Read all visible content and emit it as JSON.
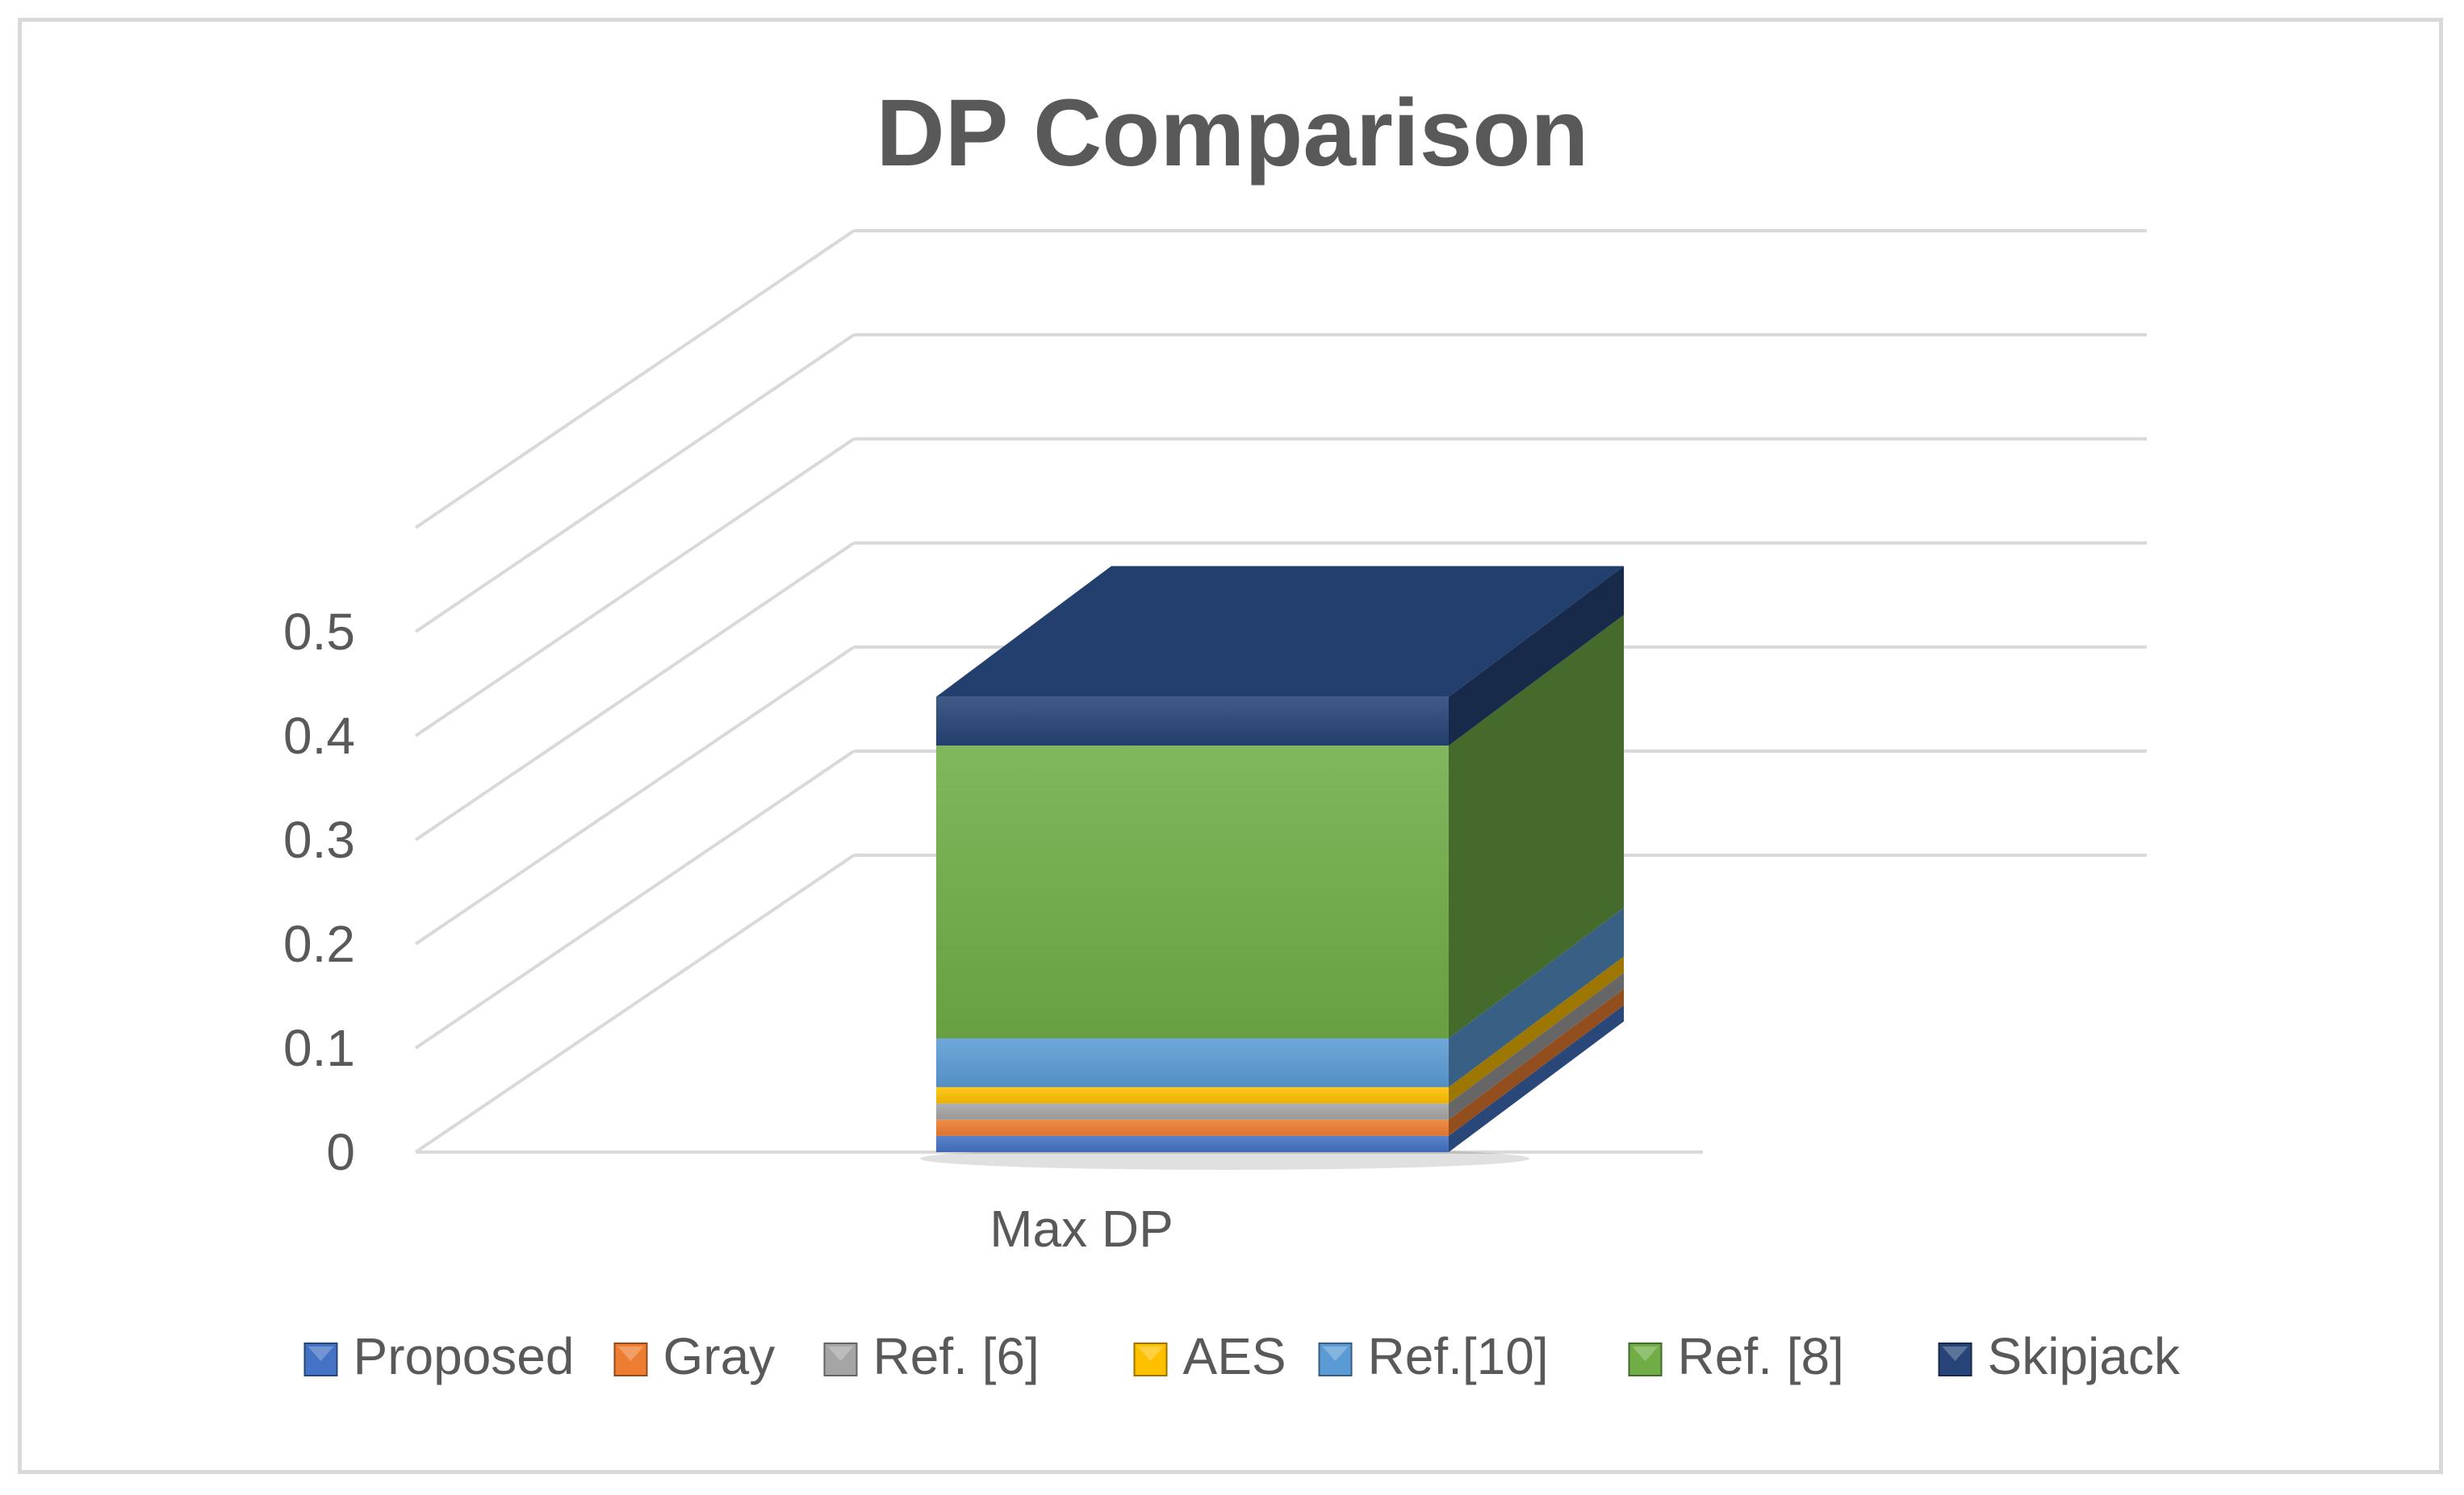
{
  "chart_data": {
    "type": "bar",
    "subtype": "stacked-3d-column",
    "title": "DP Comparison",
    "xlabel": "",
    "ylabel": "",
    "categories": [
      "Max DP"
    ],
    "ylim": [
      0,
      0.5
    ],
    "yticks": [
      "0",
      "0.1",
      "0.2",
      "0.3",
      "0.4",
      "0.5"
    ],
    "grid": true,
    "legend_position": "bottom",
    "series": [
      {
        "name": "Proposed",
        "values": [
          0.0156
        ],
        "color": "#4472c4"
      },
      {
        "name": "Gray",
        "values": [
          0.0156
        ],
        "color": "#ed7d31"
      },
      {
        "name": "Ref. [6]",
        "values": [
          0.0156
        ],
        "color": "#a5a5a5"
      },
      {
        "name": "AES",
        "values": [
          0.0156
        ],
        "color": "#ffc000"
      },
      {
        "name": "Ref.[10]",
        "values": [
          0.0469
        ],
        "color": "#5b9bd5"
      },
      {
        "name": "Ref. [8]",
        "values": [
          0.2813
        ],
        "color": "#70ad47"
      },
      {
        "name": "Skipjack",
        "values": [
          0.0469
        ],
        "color": "#264478"
      }
    ]
  }
}
